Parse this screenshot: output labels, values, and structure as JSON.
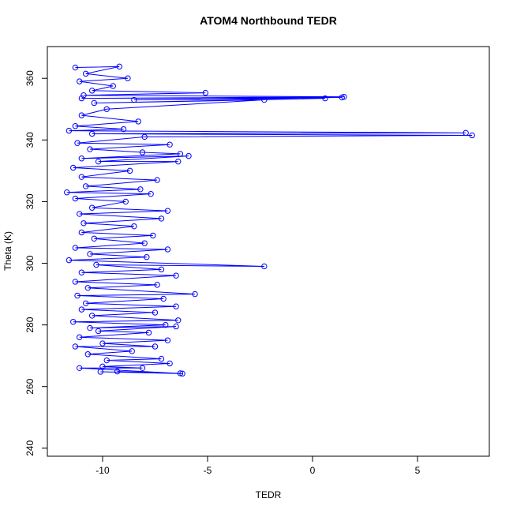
{
  "chart_data": {
    "type": "line",
    "title": "ATOM4 Northbound TEDR",
    "x_label": "TEDR",
    "y_label": "Theta (K)",
    "xlim": [
      -12.63,
      8.42
    ],
    "ylim": [
      237.4,
      370.3
    ],
    "xticks": [
      -10,
      -5,
      0,
      5
    ],
    "yticks": [
      240,
      260,
      280,
      300,
      320,
      340,
      360
    ],
    "series": [
      {
        "color": "#0000ff",
        "x": [
          -11.3,
          -9.2,
          -10.8,
          -8.8,
          -11.1,
          -9.5,
          -10.5,
          -5.1,
          -10.9,
          1.5,
          -11.0,
          1.4,
          -8.5,
          0.6,
          -10.4,
          -2.3,
          -9.8,
          -11.0,
          -8.3,
          -11.3,
          -9.0,
          -11.6,
          7.3,
          -10.5,
          7.6,
          -8.0,
          -11.2,
          -6.8,
          -10.6,
          -8.1,
          -6.3,
          -11.0,
          -5.9,
          -10.2,
          -6.4,
          -11.4,
          -8.7,
          -11.0,
          -7.4,
          -10.8,
          -8.2,
          -11.7,
          -7.7,
          -11.3,
          -8.9,
          -10.5,
          -6.9,
          -11.1,
          -7.2,
          -10.9,
          -8.5,
          -11.0,
          -7.6,
          -10.4,
          -8.0,
          -11.3,
          -6.9,
          -10.6,
          -7.9,
          -11.6,
          -2.3,
          -10.3,
          -7.2,
          -11.0,
          -6.5,
          -11.3,
          -7.4,
          -10.7,
          -5.6,
          -11.2,
          -7.1,
          -10.8,
          -6.5,
          -11.0,
          -7.5,
          -10.5,
          -6.4,
          -11.4,
          -7.0,
          -10.6,
          -6.5,
          -10.2,
          -7.8,
          -11.1,
          -6.9,
          -10.0,
          -7.5,
          -11.3,
          -8.6,
          -10.7,
          -7.2,
          -9.8,
          -6.8,
          -10.0,
          -8.1,
          -11.1,
          -6.2,
          -10.1,
          -6.3,
          -9.3
        ],
        "y": [
          363.5,
          363.8,
          361.5,
          360,
          359,
          357.5,
          356,
          355.3,
          354.5,
          354,
          353.5,
          353.8,
          353,
          353.5,
          352,
          353,
          350,
          348,
          346,
          344.5,
          343.5,
          343,
          342.3,
          342,
          341.5,
          341,
          339,
          338.5,
          337,
          336,
          335.5,
          334,
          334.8,
          333,
          333,
          331,
          330,
          328,
          327,
          325,
          324,
          323,
          322.5,
          321,
          320,
          318,
          317,
          316,
          314.5,
          313,
          312,
          310,
          309,
          308,
          306.5,
          305,
          304.5,
          303,
          302,
          301,
          299,
          299.5,
          298,
          297,
          296,
          294,
          293,
          292,
          290,
          289.5,
          288.5,
          287,
          286,
          285,
          284,
          283,
          281.5,
          281,
          280,
          279,
          279.5,
          278,
          277.5,
          276,
          275,
          274,
          273,
          273,
          271.5,
          270.5,
          269,
          268.5,
          267.5,
          266.5,
          266,
          266,
          264.2,
          264.8,
          264.3,
          264.9
        ]
      }
    ]
  }
}
